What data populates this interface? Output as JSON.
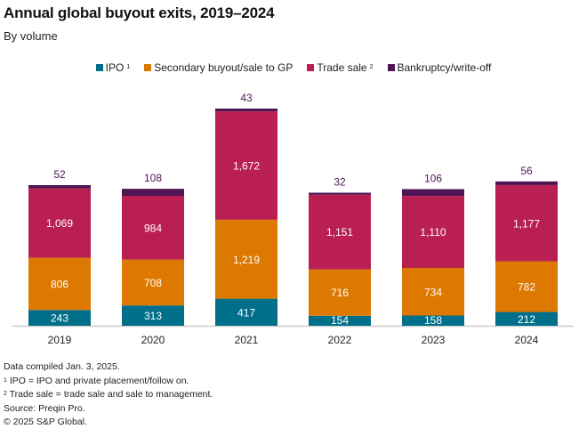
{
  "chart_data": {
    "type": "bar",
    "stacked": true,
    "title": "Annual global buyout exits, 2019–2024",
    "subtitle": "By volume",
    "xlabel": "",
    "ylabel": "",
    "ylim": [
      0,
      3351
    ],
    "grid": false,
    "legend_position": "top-center",
    "categories": [
      "2019",
      "2020",
      "2021",
      "2022",
      "2023",
      "2024"
    ],
    "series": [
      {
        "name": "IPO",
        "footnote": "1",
        "color": "#006f8a",
        "values": [
          243,
          313,
          417,
          154,
          158,
          212
        ]
      },
      {
        "name": "Secondary buyout/sale to GP",
        "footnote": "",
        "color": "#dd7800",
        "values": [
          806,
          708,
          1219,
          716,
          734,
          782
        ]
      },
      {
        "name": "Trade sale",
        "footnote": "2",
        "color": "#b92051",
        "values": [
          1069,
          984,
          1672,
          1151,
          1110,
          1177
        ]
      },
      {
        "name": "Bankruptcy/write-off",
        "footnote": "",
        "color": "#4f1454",
        "values": [
          52,
          108,
          43,
          32,
          106,
          56
        ]
      }
    ],
    "data_labels": {
      "IPO": [
        "243",
        "313",
        "417",
        "154",
        "158",
        "212"
      ],
      "Secondary buyout/sale to GP": [
        "806",
        "708",
        "1,219",
        "716",
        "734",
        "782"
      ],
      "Trade sale": [
        "1,069",
        "984",
        "1,672",
        "1,151",
        "1,110",
        "1,177"
      ],
      "Bankruptcy/write-off": [
        "52",
        "108",
        "43",
        "32",
        "106",
        "56"
      ]
    }
  },
  "legend": [
    {
      "label": "IPO",
      "sup": "1",
      "color": "#006f8a"
    },
    {
      "label": "Secondary buyout/sale to GP",
      "sup": "",
      "color": "#dd7800"
    },
    {
      "label": "Trade sale",
      "sup": "2",
      "color": "#b92051"
    },
    {
      "label": "Bankruptcy/write-off",
      "sup": "",
      "color": "#4f1454"
    }
  ],
  "footer": {
    "compiled": "Data compiled Jan. 3, 2025.",
    "note1_marker": "1",
    "note1": " IPO = IPO and private placement/follow on.",
    "note2_marker": "2",
    "note2": " Trade sale = trade sale and sale to management.",
    "source": "Source: Preqin Pro.",
    "copyright": "© 2025 S&P Global."
  },
  "colors": {
    "top_label": "#4f1454",
    "inner_label": "#ffffff",
    "baseline": "#cccccc"
  }
}
